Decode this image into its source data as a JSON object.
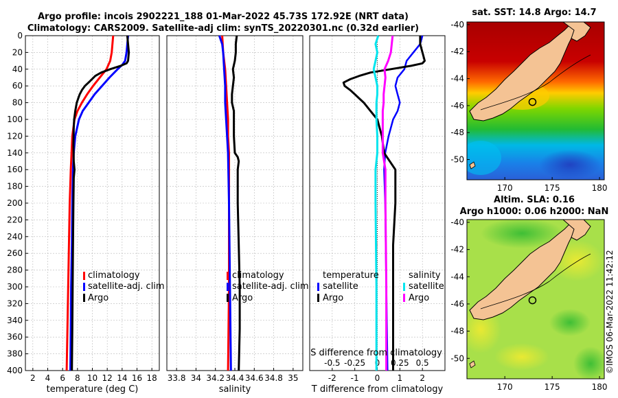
{
  "figure": {
    "title_line1": "Argo profile: incois 2902221_188 01-Mar-2022 45.73S 172.92E (NRT data)",
    "title_line2": "Climatology: CARS2009. Satellite-adj clim: synTS_20220301.nc (0.32d earlier)",
    "watermark": "©IMOS 06-Mar-2022 11:42:12"
  },
  "colors": {
    "climatology": "#ff0000",
    "satellite": "#0000ff",
    "argo": "#000000",
    "satellite_salinity": "#00e5ee",
    "argo_salinity": "#ff00ff"
  },
  "chart_data": [
    {
      "type": "line",
      "name": "temperature-profile",
      "xlabel": "temperature (deg C)",
      "xlim": [
        1,
        19
      ],
      "xticks": [
        2,
        4,
        6,
        8,
        10,
        12,
        14,
        16,
        18
      ],
      "ylim": [
        0,
        400
      ],
      "yticks": [
        0,
        20,
        40,
        60,
        80,
        100,
        120,
        140,
        160,
        180,
        200,
        220,
        240,
        260,
        280,
        300,
        320,
        340,
        360,
        380,
        400
      ],
      "legend": [
        "climatology",
        "satellite-adj. clim",
        "Argo"
      ],
      "series": [
        {
          "name": "climatology",
          "depth": [
            0,
            20,
            30,
            40,
            50,
            60,
            70,
            80,
            90,
            100,
            120,
            140,
            160,
            200,
            250,
            300,
            350,
            400
          ],
          "values": [
            12.8,
            12.6,
            12.4,
            11.9,
            11.0,
            10.1,
            9.3,
            8.6,
            8.0,
            7.6,
            7.3,
            7.2,
            7.1,
            6.95,
            6.85,
            6.75,
            6.65,
            6.55
          ]
        },
        {
          "name": "satellite-adj. clim",
          "depth": [
            0,
            20,
            30,
            35,
            40,
            50,
            60,
            70,
            80,
            90,
            100,
            120,
            140,
            160,
            200,
            250,
            300,
            350,
            400
          ],
          "values": [
            14.8,
            14.6,
            14.4,
            14.0,
            13.4,
            12.3,
            11.3,
            10.3,
            9.5,
            8.7,
            8.2,
            7.7,
            7.5,
            7.4,
            7.3,
            7.25,
            7.15,
            7.1,
            7.05
          ]
        },
        {
          "name": "Argo",
          "depth": [
            0,
            10,
            20,
            30,
            33,
            36,
            40,
            44,
            48,
            55,
            60,
            65,
            70,
            75,
            80,
            90,
            100,
            110,
            130,
            150,
            160,
            170,
            200,
            250,
            300,
            350,
            400
          ],
          "values": [
            14.7,
            14.8,
            14.9,
            14.8,
            14.6,
            13.8,
            12.4,
            11.2,
            10.4,
            9.6,
            9.0,
            8.6,
            8.3,
            8.1,
            7.9,
            7.7,
            7.55,
            7.5,
            7.45,
            7.5,
            7.6,
            7.5,
            7.45,
            7.4,
            7.35,
            7.3,
            7.25
          ]
        }
      ]
    },
    {
      "type": "line",
      "name": "salinity-profile",
      "xlabel": "salinity",
      "xlim": [
        33.7,
        35.1
      ],
      "xticks": [
        33.8,
        34,
        34.2,
        34.4,
        34.6,
        34.8,
        35
      ],
      "ticklabels": [
        "33.8",
        "34",
        "34.2",
        "34.4",
        "34.6",
        "34.8",
        "35"
      ],
      "ylim": [
        0,
        400
      ],
      "legend": [
        "climatology",
        "satellite-adj. clim",
        "Argo"
      ],
      "series": [
        {
          "name": "climatology",
          "depth": [
            0,
            20,
            40,
            60,
            80,
            100,
            120,
            140,
            200,
            300,
            400
          ],
          "values": [
            34.27,
            34.28,
            34.3,
            34.31,
            34.32,
            34.33,
            34.33,
            34.34,
            34.34,
            34.34,
            34.33
          ]
        },
        {
          "name": "satellite-adj. clim",
          "depth": [
            0,
            10,
            20,
            40,
            60,
            80,
            100,
            120,
            140,
            200,
            300,
            400
          ],
          "values": [
            34.24,
            34.27,
            34.28,
            34.29,
            34.3,
            34.3,
            34.31,
            34.32,
            34.33,
            34.34,
            34.35,
            34.36
          ]
        },
        {
          "name": "Argo",
          "depth": [
            0,
            10,
            20,
            30,
            40,
            50,
            60,
            70,
            80,
            90,
            100,
            120,
            140,
            145,
            150,
            160,
            180,
            200,
            250,
            300,
            350,
            400
          ],
          "values": [
            34.42,
            34.41,
            34.41,
            34.4,
            34.38,
            34.39,
            34.38,
            34.37,
            34.37,
            34.39,
            34.39,
            34.39,
            34.4,
            34.43,
            34.44,
            34.43,
            34.43,
            34.43,
            34.44,
            34.45,
            34.45,
            34.44
          ]
        }
      ]
    },
    {
      "type": "line",
      "name": "difference-profile",
      "xlabel": "T difference from climatology",
      "xlabel_top": "S difference from climatology",
      "xlim": [
        -3,
        3
      ],
      "xticks": [
        -2,
        -1,
        0,
        1,
        2
      ],
      "sxticks": [
        -0.5,
        -0.25,
        0,
        0.25,
        0.5
      ],
      "sticklabels": [
        "-0.5",
        "-0.25",
        "0",
        "0.25",
        "0.5"
      ],
      "ylim": [
        0,
        400
      ],
      "legend_temperature_title": "temperature",
      "legend_salinity_title": "salinity",
      "legend_temperature": [
        "satellite",
        "Argo"
      ],
      "legend_salinity": [
        "satellite",
        "Argo"
      ],
      "series": [
        {
          "name": "T satellite",
          "depth": [
            0,
            10,
            20,
            30,
            40,
            50,
            60,
            70,
            80,
            90,
            100,
            120,
            140,
            160,
            200,
            300,
            400
          ],
          "values": [
            2.0,
            1.9,
            1.6,
            1.3,
            1.2,
            0.9,
            0.8,
            0.9,
            1.0,
            0.9,
            0.7,
            0.5,
            0.35,
            0.3,
            0.35,
            0.4,
            0.45
          ]
        },
        {
          "name": "T Argo",
          "depth": [
            0,
            10,
            20,
            30,
            33,
            36,
            40,
            44,
            48,
            52,
            56,
            60,
            65,
            70,
            75,
            80,
            90,
            100,
            110,
            120,
            140,
            160,
            180,
            200,
            250,
            300,
            350,
            400
          ],
          "values": [
            1.9,
            1.9,
            2.0,
            2.1,
            2.0,
            1.5,
            0.6,
            -0.3,
            -0.8,
            -1.2,
            -1.5,
            -1.45,
            -1.2,
            -1.0,
            -0.8,
            -0.6,
            -0.3,
            0.0,
            0.1,
            0.2,
            0.3,
            0.8,
            0.8,
            0.8,
            0.7,
            0.7,
            0.7,
            0.7
          ]
        },
        {
          "name": "S satellite",
          "depth": [
            0,
            10,
            20,
            30,
            40,
            50,
            60,
            70,
            80,
            100,
            120,
            140,
            160,
            200,
            300,
            400
          ],
          "values": [
            0.01,
            -0.02,
            0.0,
            -0.02,
            -0.04,
            -0.02,
            0.0,
            0.0,
            -0.01,
            -0.01,
            0.0,
            0.0,
            -0.02,
            -0.02,
            -0.01,
            -0.01
          ]
        },
        {
          "name": "S Argo",
          "depth": [
            0,
            10,
            20,
            30,
            40,
            50,
            60,
            70,
            80,
            90,
            100,
            120,
            140,
            160,
            200,
            300,
            400
          ],
          "values": [
            0.17,
            0.16,
            0.15,
            0.12,
            0.08,
            0.09,
            0.08,
            0.07,
            0.07,
            0.06,
            0.06,
            0.06,
            0.06,
            0.09,
            0.09,
            0.1,
            0.1
          ]
        }
      ]
    },
    {
      "type": "heatmap",
      "name": "sst-map",
      "title": "sat. SST: 14.8  Argo: 14.7",
      "xticks": [
        170,
        175,
        180
      ],
      "yticks": [
        -40,
        -42,
        -44,
        -46,
        -48,
        -50
      ],
      "xlim": [
        166,
        180.5
      ],
      "ylim": [
        -51.5,
        -39.8
      ],
      "argo_location": {
        "lon": 172.92,
        "lat": -45.73
      }
    },
    {
      "type": "heatmap",
      "name": "sla-map",
      "title": "Altim. SLA: 0.16",
      "subtitle": "Argo h1000: 0.06  h2000: NaN",
      "xticks": [
        170,
        175,
        180
      ],
      "yticks": [
        -40,
        -42,
        -44,
        -46,
        -48,
        -50
      ],
      "xlim": [
        166,
        180.5
      ],
      "ylim": [
        -51.5,
        -39.8
      ],
      "argo_location": {
        "lon": 172.92,
        "lat": -45.73
      }
    }
  ]
}
